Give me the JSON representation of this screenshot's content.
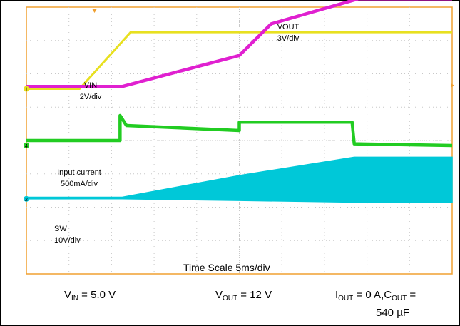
{
  "chart_data": {
    "type": "line",
    "time_scale_label": "Time Scale 5ms/div",
    "grid": true,
    "x_divisions": 10,
    "y_divisions": 8,
    "x_range_div": [
      0,
      10
    ],
    "y_range_div": [
      0,
      8
    ],
    "colors": {
      "background": "#ffffff",
      "frame": "#f0a030",
      "grid": "#c8c8c8",
      "vin": "#e8e020",
      "vout": "#e020d0",
      "current": "#22cc22",
      "sw": "#00c8d8"
    },
    "series": [
      {
        "key": "vin",
        "name": "VIN",
        "scale": "2V/div",
        "x": [
          0,
          1.25,
          2.45,
          10
        ],
        "y": [
          5.55,
          5.55,
          7.25,
          7.25
        ]
      },
      {
        "key": "vout",
        "name": "VOUT",
        "scale": "3V/div",
        "x": [
          0,
          2.25,
          5.0,
          5.75,
          7.8,
          10
        ],
        "y": [
          5.62,
          5.62,
          6.55,
          7.5,
          8.25,
          8.25
        ]
      },
      {
        "key": "current",
        "name": "Input current",
        "scale": "500mA/div",
        "x": [
          0,
          2.2,
          2.2,
          2.35,
          5.0,
          5.0,
          7.65,
          7.7,
          10
        ],
        "y": [
          4.0,
          4.0,
          4.75,
          4.45,
          4.3,
          4.55,
          4.55,
          3.9,
          3.85
        ]
      },
      {
        "key": "sw",
        "name": "SW",
        "scale": "10V/div",
        "x": [
          0,
          2.25,
          5.0,
          7.7,
          10
        ],
        "y_top": [
          2.3,
          2.3,
          2.95,
          3.5,
          3.5
        ],
        "y_bottom": [
          2.25,
          2.25,
          2.2,
          2.15,
          2.15
        ]
      }
    ],
    "channel_markers": [
      {
        "label": "1",
        "level": 5.55
      },
      {
        "label": "4",
        "level": 3.85
      },
      {
        "label": "2",
        "level": 2.25
      }
    ]
  },
  "caption": {
    "vin_main": "V",
    "vin_sub": "IN",
    "vin_rest": " = 5.0 V",
    "vout_main": "V",
    "vout_sub": "OUT",
    "vout_rest": " = 12 V",
    "iout_main": "I",
    "iout_sub": "OUT",
    "iout_mid": " = 0 A,C",
    "cout_sub": "OUT",
    "iout_rest": " =",
    "cap_value": "540 µF"
  }
}
